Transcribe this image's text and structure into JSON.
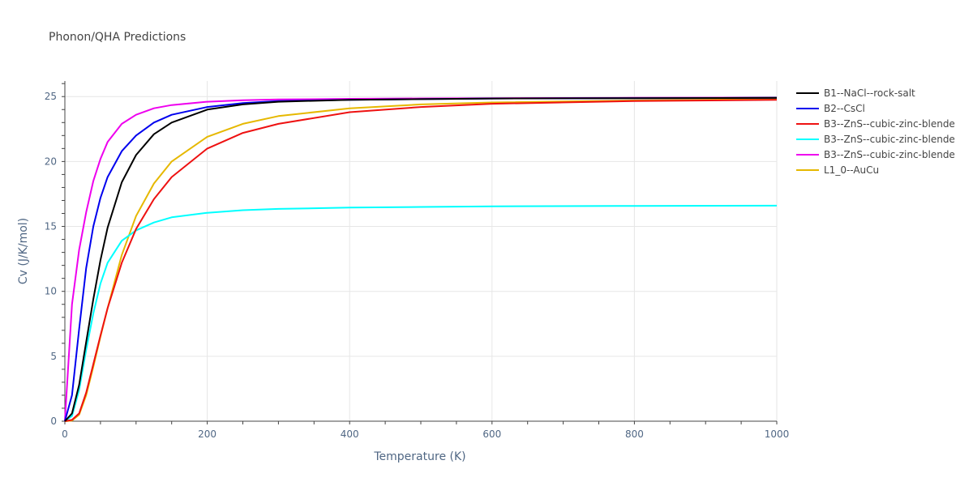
{
  "chart_data": {
    "type": "line",
    "title": "Phonon/QHA Predictions",
    "xlabel": "Temperature (K)",
    "ylabel": "Cv (J/K/mol)",
    "xlim": [
      0,
      1000
    ],
    "ylim": [
      0,
      26.2
    ],
    "xticks": [
      "0",
      "200",
      "400",
      "600",
      "800",
      "1000"
    ],
    "yticks": [
      "0",
      "5",
      "10",
      "15",
      "20",
      "25"
    ],
    "xtick_values": [
      0,
      200,
      400,
      600,
      800,
      1000
    ],
    "ytick_values": [
      0,
      5,
      10,
      15,
      20,
      25
    ],
    "grid": true,
    "legend_position": "right",
    "x": [
      0,
      10,
      20,
      30,
      40,
      50,
      60,
      80,
      100,
      125,
      150,
      200,
      250,
      300,
      400,
      500,
      600,
      800,
      1000
    ],
    "series": [
      {
        "name": "B1--NaCl--rock-salt",
        "color": "#000000",
        "values": [
          0,
          0.6,
          2.8,
          6.1,
          9.4,
          12.4,
          14.9,
          18.4,
          20.5,
          22.1,
          23.0,
          24.0,
          24.4,
          24.6,
          24.75,
          24.8,
          24.85,
          24.88,
          24.9
        ]
      },
      {
        "name": "B2--CsCl",
        "color": "#0000ee",
        "values": [
          0,
          2.0,
          7.1,
          11.8,
          15.0,
          17.2,
          18.8,
          20.8,
          22.0,
          23.0,
          23.6,
          24.2,
          24.5,
          24.65,
          24.75,
          24.8,
          24.85,
          24.88,
          24.9
        ]
      },
      {
        "name": "B3--ZnS--cubic-zinc-blende",
        "color": "#ee1111",
        "values": [
          0,
          0.1,
          0.6,
          2.2,
          4.4,
          6.6,
          8.7,
          12.2,
          14.8,
          17.1,
          18.8,
          21.0,
          22.2,
          22.9,
          23.8,
          24.2,
          24.45,
          24.65,
          24.75
        ]
      },
      {
        "name": "B3--ZnS--cubic-zinc-blende",
        "color": "#00ffff",
        "values": [
          0,
          0.4,
          2.4,
          5.5,
          8.3,
          10.6,
          12.2,
          13.9,
          14.7,
          15.3,
          15.7,
          16.05,
          16.25,
          16.35,
          16.45,
          16.5,
          16.55,
          16.58,
          16.6
        ]
      },
      {
        "name": "B3--ZnS--cubic-zinc-blende",
        "color": "#ee00ee",
        "values": [
          0,
          9.0,
          13.2,
          16.1,
          18.5,
          20.2,
          21.5,
          22.9,
          23.6,
          24.1,
          24.35,
          24.6,
          24.72,
          24.78,
          24.83,
          24.86,
          24.88,
          24.9,
          24.92
        ]
      },
      {
        "name": "L1_0--AuCu",
        "color": "#e6b800",
        "values": [
          0,
          0.05,
          0.5,
          2.0,
          4.2,
          6.5,
          8.7,
          12.8,
          15.8,
          18.3,
          20.0,
          21.9,
          22.9,
          23.5,
          24.1,
          24.4,
          24.55,
          24.7,
          24.8
        ]
      }
    ]
  }
}
